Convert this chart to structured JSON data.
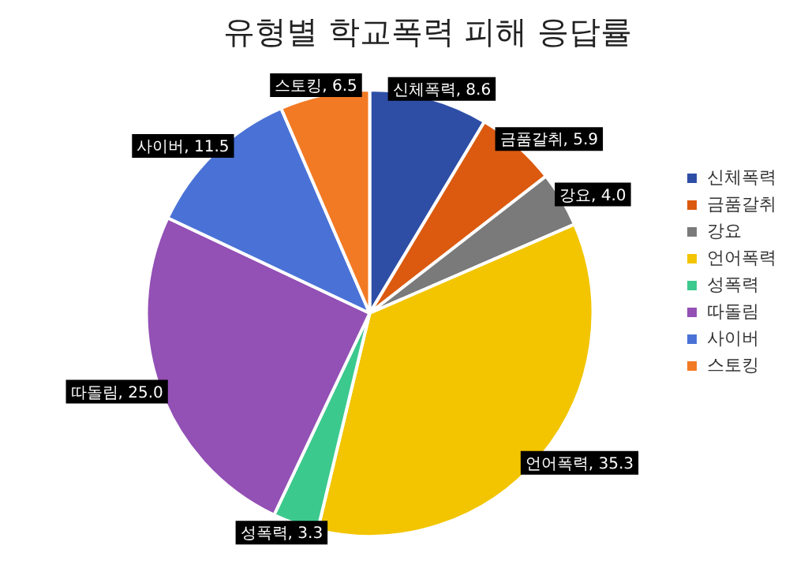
{
  "chart_data": {
    "type": "pie",
    "title": "유형별 학교폭력 피해 응답률",
    "categories": [
      "신체폭력",
      "금품갈취",
      "강요",
      "언어폭력",
      "성폭력",
      "따돌림",
      "사이버",
      "스토킹"
    ],
    "values": [
      8.6,
      5.9,
      4.0,
      35.3,
      3.3,
      25.0,
      11.5,
      6.5
    ],
    "value_labels": [
      "신체폭력, 8.6",
      "금품갈취, 5.9",
      "강요, 4.0",
      "언어폭력, 35.3",
      "성폭력, 3.3",
      "따돌림, 25.0",
      "사이버, 11.5",
      "스토킹, 6.5"
    ],
    "colors": [
      "#2e4ea6",
      "#db5a0f",
      "#7a7a7a",
      "#f2c500",
      "#3cc98e",
      "#9350b5",
      "#4a72d6",
      "#f27a24"
    ],
    "legend": "right"
  }
}
